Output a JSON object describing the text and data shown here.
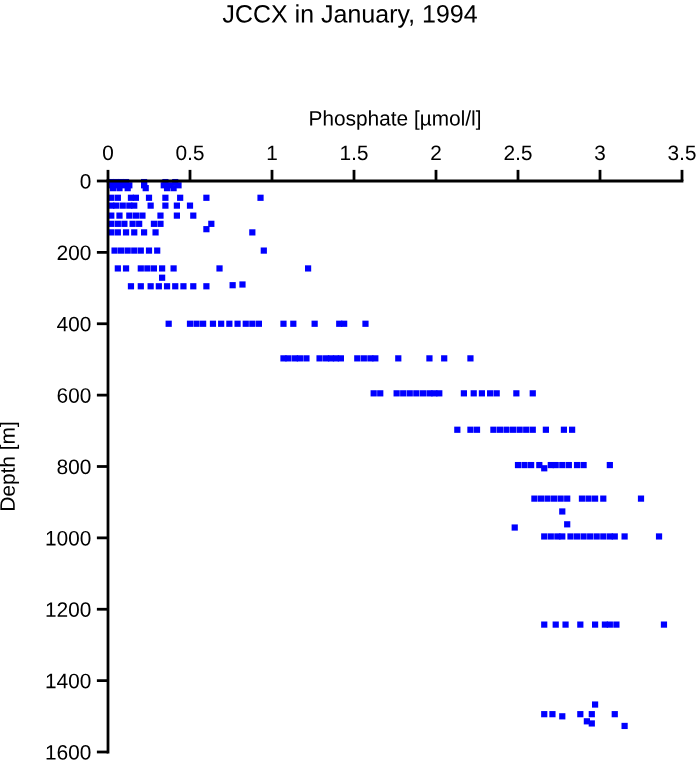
{
  "chart_data": {
    "type": "scatter",
    "title": "JCCX in January, 1994",
    "xlabel": "Phosphate [µmol/l]",
    "ylabel": "Depth [m]",
    "xlim": [
      0,
      3.5
    ],
    "xticks": [
      0,
      0.5,
      1,
      1.5,
      2,
      2.5,
      3,
      3.5
    ],
    "ylim": [
      1600,
      0
    ],
    "yticks": [
      0,
      200,
      400,
      600,
      800,
      1000,
      1200,
      1400,
      1600
    ],
    "marker": "square",
    "series": [
      {
        "color": "#0000ff",
        "x": [
          0.02,
          0.05,
          0.08,
          0.11,
          0.22,
          0.35,
          0.41,
          0.02,
          0.06,
          0.1,
          0.13,
          0.22,
          0.34,
          0.38,
          0.43,
          0.03,
          0.07,
          0.12,
          0.23,
          0.36,
          0.4,
          0.02,
          0.06,
          0.14,
          0.17,
          0.25,
          0.35,
          0.44,
          0.6,
          0.93,
          0.02,
          0.05,
          0.09,
          0.13,
          0.16,
          0.26,
          0.35,
          0.42,
          0.5,
          0.02,
          0.07,
          0.13,
          0.17,
          0.21,
          0.32,
          0.42,
          0.52,
          0.02,
          0.06,
          0.1,
          0.15,
          0.19,
          0.28,
          0.32,
          0.6,
          0.63,
          0.02,
          0.06,
          0.11,
          0.16,
          0.22,
          0.29,
          0.88,
          0.04,
          0.08,
          0.12,
          0.16,
          0.2,
          0.25,
          0.3,
          0.95,
          0.06,
          0.11,
          0.2,
          0.24,
          0.28,
          0.33,
          0.4,
          0.68,
          1.22,
          0.33,
          0.14,
          0.2,
          0.26,
          0.31,
          0.36,
          0.41,
          0.46,
          0.52,
          0.6,
          0.76,
          0.82,
          0.37,
          0.5,
          0.54,
          0.58,
          0.64,
          0.69,
          0.74,
          0.79,
          0.84,
          0.88,
          0.92,
          1.07,
          1.13,
          1.26,
          1.41,
          1.44,
          1.57,
          1.07,
          1.1,
          1.14,
          1.17,
          1.21,
          1.29,
          1.33,
          1.36,
          1.39,
          1.42,
          1.52,
          1.56,
          1.6,
          1.63,
          1.77,
          1.96,
          2.05,
          2.21,
          1.62,
          1.66,
          1.76,
          1.8,
          1.84,
          1.88,
          1.92,
          1.96,
          1.99,
          2.02,
          2.17,
          2.23,
          2.28,
          2.33,
          2.37,
          2.49,
          2.59,
          2.13,
          2.21,
          2.25,
          2.35,
          2.39,
          2.43,
          2.47,
          2.51,
          2.55,
          2.59,
          2.67,
          2.78,
          2.83,
          2.5,
          2.54,
          2.58,
          2.63,
          2.66,
          2.7,
          2.73,
          2.77,
          2.81,
          2.86,
          2.9,
          3.06,
          2.6,
          2.64,
          2.68,
          2.72,
          2.76,
          2.8,
          2.89,
          2.93,
          2.97,
          3.02,
          3.25,
          2.77,
          2.8,
          2.48,
          2.66,
          2.7,
          2.74,
          2.77,
          2.82,
          2.86,
          2.9,
          2.94,
          2.98,
          3.02,
          3.06,
          3.09,
          3.15,
          3.36,
          2.66,
          2.73,
          2.79,
          2.88,
          2.97,
          3.03,
          3.06,
          3.1,
          3.39,
          2.97,
          2.66,
          2.71,
          2.77,
          2.88,
          2.95,
          2.95,
          2.92,
          3.09,
          3.15
        ],
        "values": [
          3,
          3,
          3,
          3,
          3,
          3,
          3,
          12,
          12,
          12,
          12,
          12,
          12,
          12,
          12,
          20,
          20,
          20,
          20,
          20,
          20,
          47,
          47,
          47,
          47,
          47,
          47,
          47,
          47,
          47,
          69,
          69,
          69,
          69,
          69,
          69,
          69,
          69,
          69,
          97,
          97,
          97,
          97,
          97,
          97,
          97,
          97,
          120,
          120,
          120,
          120,
          120,
          120,
          120,
          135,
          120,
          144,
          144,
          144,
          144,
          144,
          144,
          144,
          195,
          195,
          195,
          195,
          195,
          195,
          195,
          195,
          245,
          245,
          245,
          245,
          245,
          245,
          245,
          245,
          245,
          271,
          295,
          295,
          295,
          295,
          295,
          295,
          295,
          295,
          295,
          292,
          290,
          400,
          400,
          400,
          400,
          400,
          400,
          400,
          400,
          400,
          400,
          400,
          400,
          400,
          400,
          400,
          400,
          400,
          497,
          497,
          497,
          497,
          497,
          497,
          497,
          497,
          497,
          497,
          497,
          497,
          497,
          497,
          497,
          497,
          497,
          497,
          595,
          595,
          595,
          595,
          595,
          595,
          595,
          595,
          595,
          595,
          595,
          595,
          595,
          595,
          595,
          595,
          595,
          697,
          697,
          697,
          697,
          697,
          697,
          697,
          697,
          697,
          697,
          697,
          697,
          697,
          796,
          796,
          796,
          796,
          805,
          796,
          796,
          796,
          796,
          796,
          796,
          796,
          890,
          890,
          890,
          890,
          890,
          890,
          890,
          890,
          890,
          890,
          890,
          926,
          962,
          971,
          996,
          996,
          996,
          996,
          996,
          996,
          996,
          996,
          996,
          996,
          996,
          996,
          996,
          996,
          1243,
          1243,
          1243,
          1243,
          1243,
          1243,
          1243,
          1243,
          1243,
          1467,
          1494,
          1494,
          1500,
          1494,
          1494,
          1520,
          1514,
          1494,
          1527
        ]
      }
    ]
  }
}
